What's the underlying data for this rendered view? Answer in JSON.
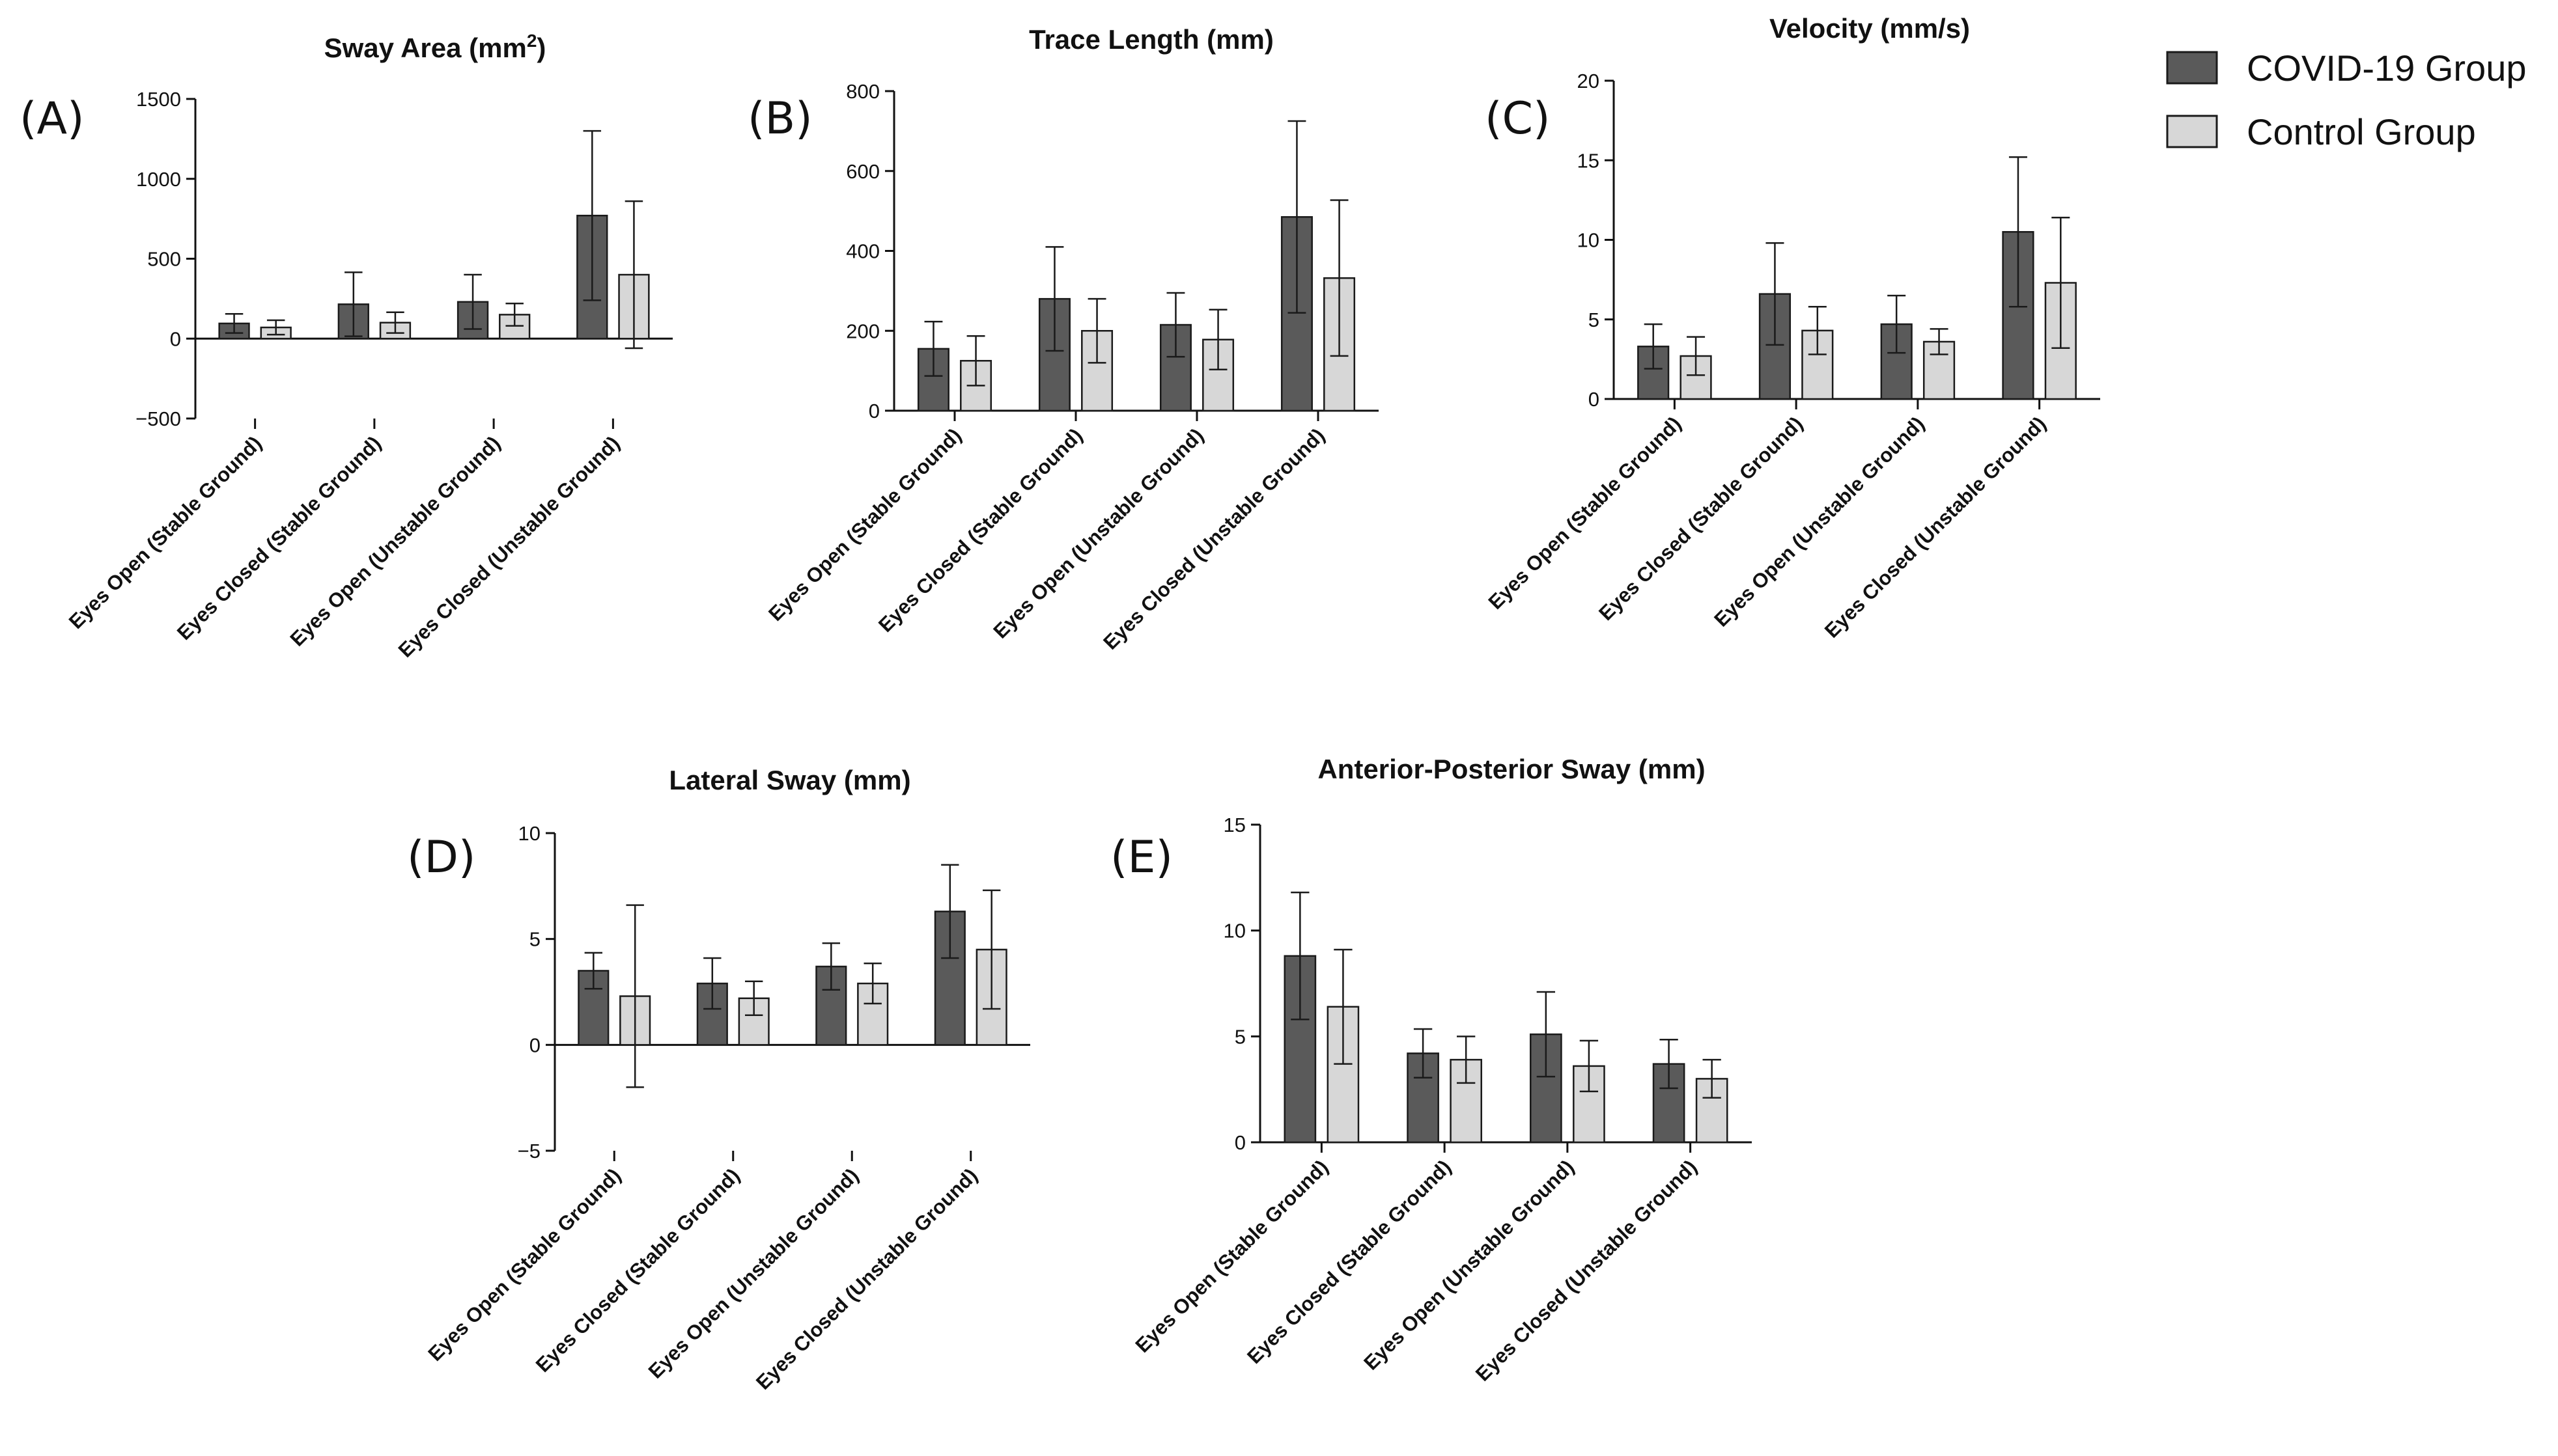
{
  "colors": {
    "covid": "#5a5a5a",
    "control": "#d7d7d7",
    "stroke": "#1a1a1a"
  },
  "legend": [
    {
      "key": "covid",
      "label": "COVID-19 Group"
    },
    {
      "key": "control",
      "label": "Control Group"
    }
  ],
  "chart_data": [
    {
      "id": "A",
      "letter": "(A)",
      "type": "bar",
      "title": "Sway Area (mm",
      "title_sup": "2",
      "title_suffix": ")",
      "categories": [
        "Eyes Open (Stable Ground)",
        "Eyes Closed (Stable Ground)",
        "Eyes Open (Unstable Ground)",
        "Eyes Closed (Unstable Ground)"
      ],
      "yticks": [
        -500,
        0,
        500,
        1000,
        1500
      ],
      "ytick_labels": [
        "−500",
        "0",
        "500",
        "1000",
        "1500"
      ],
      "ylim": [
        -500,
        1500
      ],
      "series": [
        {
          "name": "COVID-19 Group",
          "values": [
            95,
            215,
            230,
            770
          ],
          "err": [
            60,
            200,
            170,
            530
          ]
        },
        {
          "name": "Control Group",
          "values": [
            70,
            100,
            150,
            400
          ],
          "err": [
            45,
            65,
            70,
            460
          ]
        }
      ]
    },
    {
      "id": "B",
      "letter": "(B)",
      "type": "bar",
      "title": "Trace Length (mm)",
      "title_sup": "",
      "title_suffix": "",
      "categories": [
        "Eyes Open (Stable Ground)",
        "Eyes Closed (Stable Ground)",
        "Eyes Open (Unstable Ground)",
        "Eyes Closed (Unstable Ground)"
      ],
      "yticks": [
        0,
        200,
        400,
        600,
        800
      ],
      "ytick_labels": [
        "0",
        "200",
        "400",
        "600",
        "800"
      ],
      "ylim": [
        0,
        800
      ],
      "series": [
        {
          "name": "COVID-19 Group",
          "values": [
            155,
            280,
            215,
            485
          ],
          "err": [
            68,
            130,
            80,
            240
          ]
        },
        {
          "name": "Control Group",
          "values": [
            125,
            200,
            178,
            332
          ],
          "err": [
            62,
            80,
            75,
            195
          ]
        }
      ]
    },
    {
      "id": "C",
      "letter": "(C)",
      "type": "bar",
      "title": "Velocity (mm/s)",
      "title_sup": "",
      "title_suffix": "",
      "categories": [
        "Eyes Open (Stable Ground)",
        "Eyes Closed (Stable Ground)",
        "Eyes Open (Unstable Ground)",
        "Eyes Closed (Unstable Ground)"
      ],
      "yticks": [
        0,
        5,
        10,
        15,
        20
      ],
      "ytick_labels": [
        "0",
        "5",
        "10",
        "15",
        "20"
      ],
      "ylim": [
        0,
        20
      ],
      "series": [
        {
          "name": "COVID-19 Group",
          "values": [
            3.3,
            6.6,
            4.7,
            10.5
          ],
          "err": [
            1.4,
            3.2,
            1.8,
            4.7
          ]
        },
        {
          "name": "Control Group",
          "values": [
            2.7,
            4.3,
            3.6,
            7.3
          ],
          "err": [
            1.2,
            1.5,
            0.8,
            4.1
          ]
        }
      ]
    },
    {
      "id": "D",
      "letter": "(D)",
      "type": "bar",
      "title": "Lateral Sway (mm)",
      "title_sup": "",
      "title_suffix": "",
      "categories": [
        "Eyes Open (Stable Ground)",
        "Eyes Closed (Stable Ground)",
        "Eyes Open (Unstable Ground)",
        "Eyes Closed (Unstable Ground)"
      ],
      "yticks": [
        -5,
        0,
        5,
        10
      ],
      "ytick_labels": [
        "−5",
        "0",
        "5",
        "10"
      ],
      "ylim": [
        -5,
        10
      ],
      "series": [
        {
          "name": "COVID-19 Group",
          "values": [
            3.5,
            2.9,
            3.7,
            6.3
          ],
          "err": [
            0.85,
            1.2,
            1.1,
            2.2
          ]
        },
        {
          "name": "Control Group",
          "values": [
            2.3,
            2.2,
            2.9,
            4.5
          ],
          "err": [
            4.3,
            0.8,
            0.95,
            2.8
          ]
        }
      ]
    },
    {
      "id": "E",
      "letter": "(E)",
      "type": "bar",
      "title": "Anterior-Posterior Sway (mm)",
      "title_sup": "",
      "title_suffix": "",
      "categories": [
        "Eyes Open (Stable Ground)",
        "Eyes Closed (Stable Ground)",
        "Eyes Open (Unstable Ground)",
        "Eyes Closed (Unstable Ground)"
      ],
      "yticks": [
        0,
        5,
        10,
        15
      ],
      "ytick_labels": [
        "0",
        "5",
        "10",
        "15"
      ],
      "ylim": [
        0,
        15
      ],
      "series": [
        {
          "name": "COVID-19 Group",
          "values": [
            8.8,
            4.2,
            5.1,
            3.7
          ],
          "err": [
            3.0,
            1.15,
            2.0,
            1.15
          ]
        },
        {
          "name": "Control Group",
          "values": [
            6.4,
            3.9,
            3.6,
            3.0
          ],
          "err": [
            2.7,
            1.1,
            1.2,
            0.9
          ]
        }
      ]
    }
  ]
}
